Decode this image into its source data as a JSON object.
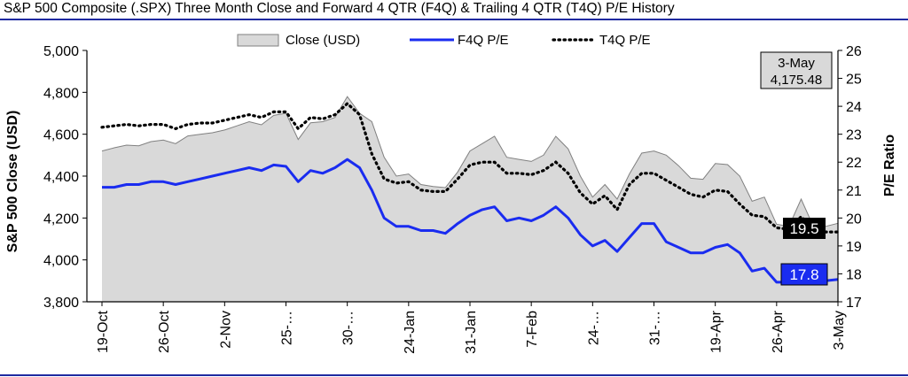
{
  "title": "S&P 500 Composite (.SPX) Three Month Close and Forward 4 QTR (F4Q) & Trailing 4 QTR (T4Q) P/E History",
  "colors": {
    "area_fill": "#d9d9d9",
    "area_stroke": "#808080",
    "f4q": "#1a2cf0",
    "t4q": "#000000",
    "rule": "#1f2aa0",
    "callout_box": "#d9d9d9"
  },
  "chart_data": {
    "type": "area+line",
    "legend": {
      "placement": "top-center",
      "entries": [
        "Close (USD)",
        "F4Q P/E",
        "T4Q P/E"
      ]
    },
    "ylabel": "S&P 500 Close (USD)",
    "y2label": "P/E Ratio",
    "ylim": [
      3800,
      5000
    ],
    "y2lim": [
      17,
      26
    ],
    "y_ticks": [
      "3,800",
      "4,000",
      "4,200",
      "4,400",
      "4,600",
      "4,800",
      "5,000"
    ],
    "y2_ticks": [
      "17",
      "18",
      "19",
      "20",
      "21",
      "22",
      "23",
      "24",
      "25",
      "26"
    ],
    "x_ticks": [
      {
        "label": "19-Oct",
        "index": 0
      },
      {
        "label": "26-Oct",
        "index": 5
      },
      {
        "label": "2-Nov",
        "index": 10
      },
      {
        "label": "25-…",
        "index": 15
      },
      {
        "label": "30-…",
        "index": 20
      },
      {
        "label": "24-Jan",
        "index": 25
      },
      {
        "label": "31-Jan",
        "index": 30
      },
      {
        "label": "7-Feb",
        "index": 35
      },
      {
        "label": "24-…",
        "index": 40
      },
      {
        "label": "31-…",
        "index": 45
      },
      {
        "label": "19-Apr",
        "index": 50
      },
      {
        "label": "26-Apr",
        "index": 55
      },
      {
        "label": "3-May",
        "index": 60
      }
    ],
    "series": [
      {
        "name": "Close (USD)",
        "type": "area",
        "values": [
          4520,
          4535,
          4548,
          4545,
          4565,
          4572,
          4555,
          4592,
          4600,
          4607,
          4620,
          4640,
          4660,
          4645,
          4690,
          4700,
          4575,
          4655,
          4660,
          4680,
          4780,
          4700,
          4660,
          4490,
          4400,
          4410,
          4360,
          4350,
          4345,
          4420,
          4520,
          4555,
          4590,
          4490,
          4480,
          4470,
          4500,
          4590,
          4530,
          4400,
          4300,
          4360,
          4290,
          4410,
          4510,
          4520,
          4500,
          4450,
          4390,
          4385,
          4460,
          4455,
          4400,
          4280,
          4300,
          4170,
          4160,
          4290,
          4160,
          4160,
          4175
        ]
      },
      {
        "name": "F4Q P/E",
        "type": "line",
        "values": [
          21.1,
          21.1,
          21.2,
          21.2,
          21.3,
          21.3,
          21.2,
          21.3,
          21.4,
          21.5,
          21.6,
          21.7,
          21.8,
          21.7,
          21.9,
          21.85,
          21.3,
          21.7,
          21.6,
          21.8,
          22.1,
          21.8,
          21.0,
          20.0,
          19.7,
          19.7,
          19.55,
          19.55,
          19.45,
          19.8,
          20.1,
          20.3,
          20.4,
          19.9,
          20.0,
          19.9,
          20.1,
          20.4,
          20.0,
          19.4,
          19.0,
          19.2,
          18.8,
          19.3,
          19.8,
          19.8,
          19.15,
          18.95,
          18.75,
          18.75,
          18.95,
          19.05,
          18.75,
          18.1,
          18.2,
          17.7,
          17.7,
          17.75,
          17.7,
          17.75,
          17.8
        ]
      },
      {
        "name": "T4Q P/E",
        "type": "line",
        "values": [
          23.25,
          23.3,
          23.35,
          23.3,
          23.35,
          23.35,
          23.2,
          23.35,
          23.4,
          23.4,
          23.5,
          23.6,
          23.7,
          23.6,
          23.8,
          23.8,
          23.2,
          23.6,
          23.55,
          23.7,
          24.1,
          23.7,
          22.3,
          21.4,
          21.25,
          21.3,
          21.0,
          20.95,
          20.95,
          21.4,
          21.9,
          22.0,
          22.0,
          21.6,
          21.6,
          21.55,
          21.7,
          22.0,
          21.6,
          20.9,
          20.5,
          20.8,
          20.3,
          21.2,
          21.6,
          21.6,
          21.35,
          21.1,
          20.85,
          20.75,
          21.0,
          20.95,
          20.5,
          20.1,
          20.05,
          19.65,
          19.6,
          20.05,
          19.6,
          19.5,
          19.5
        ]
      }
    ],
    "callouts": {
      "date_box": {
        "line1": "3-May",
        "line2": "4,175.48"
      },
      "t4q_value": "19.5",
      "f4q_value": "17.8"
    },
    "grid": false
  }
}
